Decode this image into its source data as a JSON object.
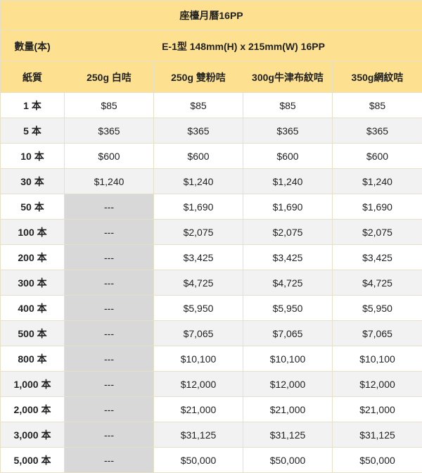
{
  "table": {
    "title": "座檯月曆16PP",
    "qty_header": "數量(本)",
    "spec": "E-1型 148mm(H) x 215mm(W) 16PP",
    "paper_header": "紙質",
    "papers": [
      "250g 白咭",
      "250g 雙粉咭",
      "300g牛津布紋咭",
      "350g網紋咭"
    ],
    "rows": [
      {
        "qty": "1 本",
        "prices": [
          "$85",
          "$85",
          "$85",
          "$85"
        ]
      },
      {
        "qty": "5 本",
        "prices": [
          "$365",
          "$365",
          "$365",
          "$365"
        ]
      },
      {
        "qty": "10 本",
        "prices": [
          "$600",
          "$600",
          "$600",
          "$600"
        ]
      },
      {
        "qty": "30 本",
        "prices": [
          "$1,240",
          "$1,240",
          "$1,240",
          "$1,240"
        ]
      },
      {
        "qty": "50 本",
        "prices": [
          "---",
          "$1,690",
          "$1,690",
          "$1,690"
        ]
      },
      {
        "qty": "100 本",
        "prices": [
          "---",
          "$2,075",
          "$2,075",
          "$2,075"
        ]
      },
      {
        "qty": "200 本",
        "prices": [
          "---",
          "$3,425",
          "$3,425",
          "$3,425"
        ]
      },
      {
        "qty": "300 本",
        "prices": [
          "---",
          "$4,725",
          "$4,725",
          "$4,725"
        ]
      },
      {
        "qty": "400 本",
        "prices": [
          "---",
          "$5,950",
          "$5,950",
          "$5,950"
        ]
      },
      {
        "qty": "500 本",
        "prices": [
          "---",
          "$7,065",
          "$7,065",
          "$7,065"
        ]
      },
      {
        "qty": "800 本",
        "prices": [
          "---",
          "$10,100",
          "$10,100",
          "$10,100"
        ]
      },
      {
        "qty": "1,000 本",
        "prices": [
          "---",
          "$12,000",
          "$12,000",
          "$12,000"
        ]
      },
      {
        "qty": "2,000 本",
        "prices": [
          "---",
          "$21,000",
          "$21,000",
          "$21,000"
        ]
      },
      {
        "qty": "3,000 本",
        "prices": [
          "---",
          "$31,125",
          "$31,125",
          "$31,125"
        ]
      },
      {
        "qty": "5,000 本",
        "prices": [
          "---",
          "$50,000",
          "$50,000",
          "$50,000"
        ]
      }
    ]
  },
  "colors": {
    "header_bg": "#fde190",
    "stripe_bg": "#f2f2f2",
    "unavailable_bg": "#d8d8d8"
  }
}
